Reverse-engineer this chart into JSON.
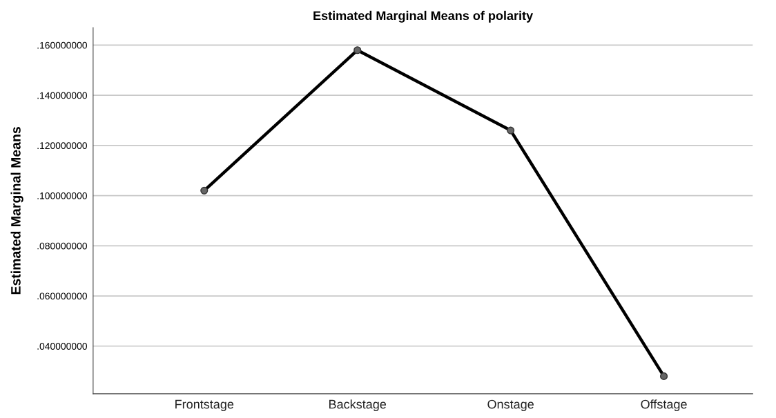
{
  "chart_data": {
    "type": "line",
    "title": "Estimated Marginal Means of polarity",
    "ylabel": "Estimated Marginal Means",
    "categories": [
      "Frontstage",
      "Backstage",
      "Onstage",
      "Offstage"
    ],
    "series": [
      {
        "color": "#000000",
        "values": [
          0.102,
          0.158,
          0.126,
          0.028
        ]
      }
    ],
    "ylim": [
      0.021,
      0.167
    ],
    "yticks": [
      {
        "value": 0.04,
        "label": ".040000000"
      },
      {
        "value": 0.06,
        "label": ".060000000"
      },
      {
        "value": 0.08,
        "label": ".080000000"
      },
      {
        "value": 0.1,
        "label": ".100000000"
      },
      {
        "value": 0.12,
        "label": ".120000000"
      },
      {
        "value": 0.14,
        "label": ".140000000"
      },
      {
        "value": 0.16,
        "label": ".160000000"
      }
    ],
    "grid": "y",
    "marker": "circle",
    "line_style": "solid"
  }
}
